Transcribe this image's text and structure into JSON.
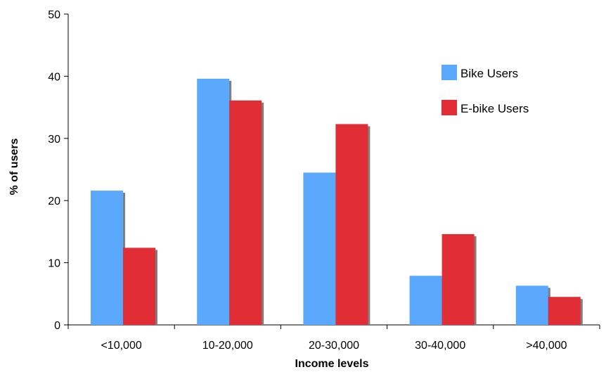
{
  "chart_data": {
    "type": "bar",
    "title": "",
    "xlabel": "Income levels",
    "ylabel": "% of users",
    "categories": [
      "<10,000",
      "10-20,000",
      "20-30,000",
      "30-40,000",
      ">40,000"
    ],
    "series": [
      {
        "name": "Bike Users",
        "color": "#5aa9ff",
        "values": [
          21.6,
          39.6,
          24.5,
          7.9,
          6.3
        ]
      },
      {
        "name": "E-bike Users",
        "color": "#e02d36",
        "values": [
          12.4,
          36.1,
          32.3,
          14.6,
          4.5
        ]
      }
    ],
    "ylim": [
      0,
      50
    ],
    "yticks": [
      0,
      10,
      20,
      30,
      40,
      50
    ],
    "grid": false,
    "legend_position": "top-right",
    "shadow_color": "#7f7f7f"
  }
}
